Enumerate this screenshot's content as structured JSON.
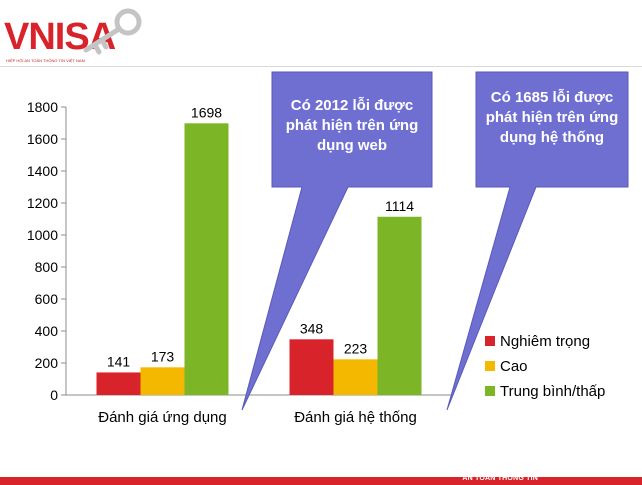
{
  "logo": {
    "text": "VNISA",
    "subtitle": "HIỆP HỘI AN TOÀN THÔNG TIN VIỆT NAM"
  },
  "footer": {
    "label": "AN TOÀN THÔNG TIN"
  },
  "callouts": [
    {
      "text": "Có 2012 lỗi được phát hiện trên ứng dụng web"
    },
    {
      "text": "Có 1685 lỗi được phát hiện trên ứng dụng hệ thống"
    }
  ],
  "colors": {
    "critical": "#d8232a",
    "high": "#f5b800",
    "medium_low": "#7cb526",
    "callout": "#6f6fd2",
    "brand": "#d8232a"
  },
  "chart_data": {
    "type": "bar",
    "categories": [
      "Đánh giá ứng dụng",
      "Đánh giá hệ thống"
    ],
    "series": [
      {
        "name": "Nghiêm trọng",
        "values": [
          141,
          348
        ],
        "color": "#d8232a"
      },
      {
        "name": "Cao",
        "values": [
          173,
          223
        ],
        "color": "#f5b800"
      },
      {
        "name": "Trung bình/thấp",
        "values": [
          1698,
          1114
        ],
        "color": "#7cb526"
      }
    ],
    "yticks": [
      0,
      200,
      400,
      600,
      800,
      1000,
      1200,
      1400,
      1600,
      1800
    ],
    "ylim": [
      0,
      1800
    ],
    "grid": false,
    "legend": "right"
  }
}
